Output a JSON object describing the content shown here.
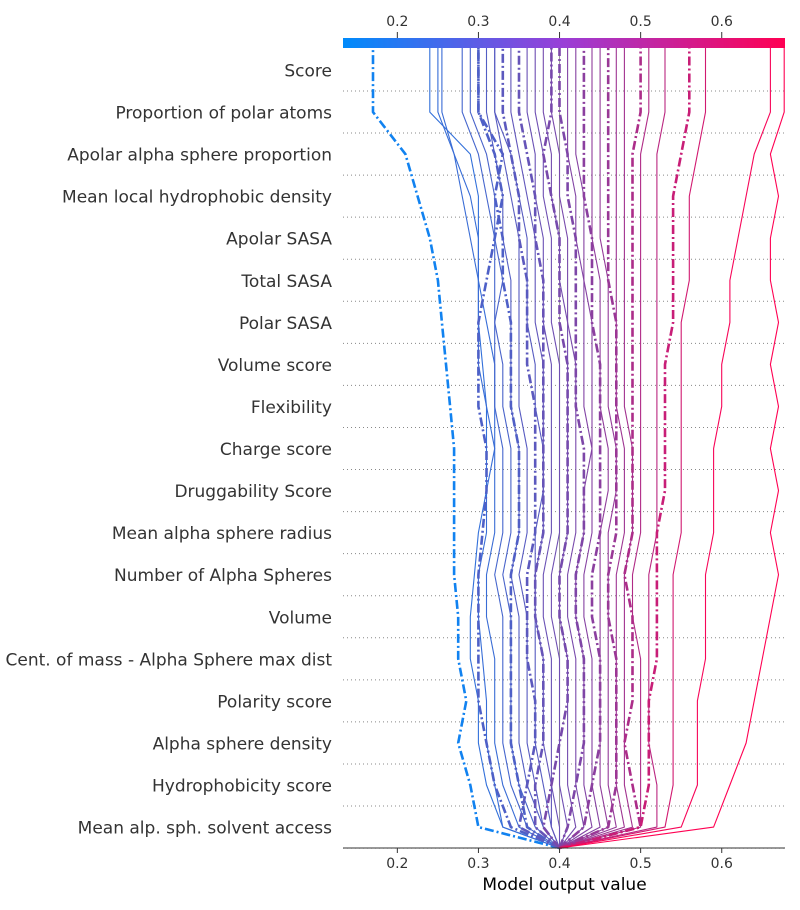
{
  "chart_data": {
    "type": "line",
    "xlabel": "Model output value",
    "xlim": [
      0.133,
      0.678
    ],
    "xticks": [
      0.2,
      0.3,
      0.4,
      0.5,
      0.6
    ],
    "tick_labels": [
      "0.2",
      "0.3",
      "0.4",
      "0.5",
      "0.6"
    ],
    "base_value": 0.4,
    "colormap": [
      "#008bfb",
      "#ff0052"
    ],
    "features": [
      "Score",
      "Proportion of polar atoms",
      "Apolar alpha sphere proportion",
      "Mean local hydrophobic density",
      "Apolar SASA",
      "Total SASA",
      "Polar SASA",
      "Volume score",
      "Flexibility",
      "Charge score",
      "Druggability Score",
      "Mean alpha sphere radius",
      "Number of Alpha Spheres",
      "Volume",
      "Cent. of mass - Alpha Sphere max dist",
      "Polarity score",
      "Alpha sphere density",
      "Hydrophobicity score",
      "Mean alp. sph. solvent access"
    ],
    "series": [
      {
        "style": "dashdot",
        "values": [
          0.4,
          0.3,
          0.29,
          0.275,
          0.285,
          0.275,
          0.275,
          0.27,
          0.27,
          0.27,
          0.27,
          0.265,
          0.26,
          0.255,
          0.25,
          0.24,
          0.225,
          0.21,
          0.17
        ]
      },
      {
        "style": "solid",
        "values": [
          0.4,
          0.33,
          0.31,
          0.3,
          0.3,
          0.29,
          0.29,
          0.295,
          0.3,
          0.31,
          0.31,
          0.31,
          0.305,
          0.3,
          0.3,
          0.3,
          0.3,
          0.29,
          0.24
        ]
      },
      {
        "style": "solid",
        "values": [
          0.4,
          0.33,
          0.32,
          0.31,
          0.31,
          0.305,
          0.3,
          0.3,
          0.31,
          0.31,
          0.32,
          0.32,
          0.32,
          0.31,
          0.3,
          0.3,
          0.29,
          0.27,
          0.25
        ]
      },
      {
        "style": "solid",
        "values": [
          0.4,
          0.35,
          0.33,
          0.32,
          0.32,
          0.32,
          0.31,
          0.31,
          0.32,
          0.32,
          0.32,
          0.31,
          0.3,
          0.3,
          0.3,
          0.29,
          0.28,
          0.27,
          0.255
        ]
      },
      {
        "style": "dashdot",
        "values": [
          0.4,
          0.34,
          0.32,
          0.31,
          0.3,
          0.3,
          0.3,
          0.3,
          0.305,
          0.31,
          0.31,
          0.3,
          0.3,
          0.3,
          0.31,
          0.32,
          0.33,
          0.32,
          0.3
        ]
      },
      {
        "style": "solid",
        "values": [
          0.4,
          0.36,
          0.34,
          0.33,
          0.33,
          0.33,
          0.33,
          0.32,
          0.33,
          0.33,
          0.33,
          0.32,
          0.32,
          0.32,
          0.32,
          0.32,
          0.31,
          0.3,
          0.28
        ]
      },
      {
        "style": "solid",
        "values": [
          0.4,
          0.37,
          0.35,
          0.34,
          0.34,
          0.34,
          0.34,
          0.33,
          0.34,
          0.34,
          0.34,
          0.33,
          0.33,
          0.32,
          0.33,
          0.32,
          0.32,
          0.31,
          0.29
        ]
      },
      {
        "style": "dashdot",
        "values": [
          0.4,
          0.36,
          0.35,
          0.34,
          0.34,
          0.34,
          0.34,
          0.34,
          0.35,
          0.35,
          0.35,
          0.34,
          0.34,
          0.34,
          0.33,
          0.33,
          0.32,
          0.33,
          0.3
        ]
      },
      {
        "style": "solid",
        "values": [
          0.4,
          0.38,
          0.36,
          0.35,
          0.35,
          0.35,
          0.35,
          0.34,
          0.35,
          0.35,
          0.35,
          0.34,
          0.34,
          0.34,
          0.34,
          0.33,
          0.33,
          0.32,
          0.31
        ]
      },
      {
        "style": "solid",
        "values": [
          0.4,
          0.38,
          0.37,
          0.36,
          0.36,
          0.36,
          0.36,
          0.35,
          0.36,
          0.36,
          0.36,
          0.35,
          0.35,
          0.35,
          0.35,
          0.35,
          0.34,
          0.33,
          0.32
        ]
      },
      {
        "style": "dashdot",
        "values": [
          0.4,
          0.35,
          0.36,
          0.37,
          0.37,
          0.36,
          0.36,
          0.36,
          0.37,
          0.37,
          0.37,
          0.37,
          0.36,
          0.36,
          0.36,
          0.35,
          0.35,
          0.34,
          0.33
        ]
      },
      {
        "style": "solid",
        "values": [
          0.4,
          0.39,
          0.38,
          0.37,
          0.37,
          0.37,
          0.37,
          0.37,
          0.37,
          0.38,
          0.38,
          0.37,
          0.37,
          0.36,
          0.36,
          0.36,
          0.35,
          0.34,
          0.32
        ]
      },
      {
        "style": "solid",
        "values": [
          0.4,
          0.39,
          0.39,
          0.38,
          0.38,
          0.38,
          0.37,
          0.37,
          0.38,
          0.38,
          0.38,
          0.38,
          0.38,
          0.37,
          0.37,
          0.37,
          0.36,
          0.35,
          0.34
        ]
      },
      {
        "style": "dashdot",
        "values": [
          0.4,
          0.37,
          0.37,
          0.38,
          0.38,
          0.38,
          0.37,
          0.37,
          0.38,
          0.38,
          0.38,
          0.38,
          0.38,
          0.38,
          0.38,
          0.37,
          0.37,
          0.36,
          0.35
        ]
      },
      {
        "style": "solid",
        "values": [
          0.4,
          0.4,
          0.39,
          0.39,
          0.39,
          0.39,
          0.38,
          0.38,
          0.39,
          0.39,
          0.39,
          0.39,
          0.39,
          0.38,
          0.38,
          0.38,
          0.37,
          0.37,
          0.36
        ]
      },
      {
        "style": "solid",
        "values": [
          0.4,
          0.41,
          0.4,
          0.4,
          0.4,
          0.4,
          0.39,
          0.39,
          0.4,
          0.4,
          0.4,
          0.4,
          0.4,
          0.39,
          0.39,
          0.39,
          0.38,
          0.38,
          0.37
        ]
      },
      {
        "style": "dashdot",
        "values": [
          0.4,
          0.38,
          0.39,
          0.4,
          0.41,
          0.41,
          0.4,
          0.4,
          0.41,
          0.41,
          0.41,
          0.41,
          0.41,
          0.4,
          0.4,
          0.4,
          0.39,
          0.38,
          0.39
        ]
      },
      {
        "style": "solid",
        "values": [
          0.4,
          0.42,
          0.41,
          0.41,
          0.41,
          0.41,
          0.4,
          0.4,
          0.41,
          0.41,
          0.41,
          0.41,
          0.41,
          0.41,
          0.4,
          0.4,
          0.39,
          0.39,
          0.38
        ]
      },
      {
        "style": "solid",
        "values": [
          0.4,
          0.43,
          0.42,
          0.42,
          0.42,
          0.42,
          0.41,
          0.41,
          0.42,
          0.42,
          0.42,
          0.42,
          0.42,
          0.41,
          0.41,
          0.41,
          0.4,
          0.4,
          0.39
        ]
      },
      {
        "style": "dashdot",
        "values": [
          0.4,
          0.41,
          0.42,
          0.43,
          0.43,
          0.43,
          0.42,
          0.42,
          0.43,
          0.43,
          0.43,
          0.42,
          0.42,
          0.42,
          0.42,
          0.42,
          0.41,
          0.41,
          0.4
        ]
      },
      {
        "style": "solid",
        "values": [
          0.4,
          0.44,
          0.43,
          0.43,
          0.43,
          0.43,
          0.42,
          0.42,
          0.43,
          0.43,
          0.44,
          0.43,
          0.43,
          0.43,
          0.43,
          0.42,
          0.42,
          0.41,
          0.41
        ]
      },
      {
        "style": "solid",
        "values": [
          0.4,
          0.45,
          0.44,
          0.44,
          0.44,
          0.44,
          0.43,
          0.43,
          0.44,
          0.44,
          0.44,
          0.44,
          0.44,
          0.44,
          0.43,
          0.43,
          0.43,
          0.42,
          0.42
        ]
      },
      {
        "style": "dashdot",
        "values": [
          0.4,
          0.43,
          0.44,
          0.45,
          0.45,
          0.45,
          0.44,
          0.44,
          0.45,
          0.45,
          0.45,
          0.45,
          0.45,
          0.44,
          0.44,
          0.44,
          0.43,
          0.43,
          0.43
        ]
      },
      {
        "style": "solid",
        "values": [
          0.4,
          0.46,
          0.45,
          0.45,
          0.45,
          0.45,
          0.45,
          0.45,
          0.45,
          0.46,
          0.46,
          0.45,
          0.45,
          0.45,
          0.45,
          0.44,
          0.44,
          0.44,
          0.44
        ]
      },
      {
        "style": "solid",
        "values": [
          0.4,
          0.47,
          0.46,
          0.46,
          0.46,
          0.46,
          0.46,
          0.46,
          0.46,
          0.47,
          0.47,
          0.46,
          0.46,
          0.46,
          0.46,
          0.45,
          0.45,
          0.45,
          0.45
        ]
      },
      {
        "style": "dashdot",
        "values": [
          0.4,
          0.46,
          0.47,
          0.47,
          0.47,
          0.47,
          0.46,
          0.46,
          0.47,
          0.47,
          0.47,
          0.47,
          0.47,
          0.47,
          0.46,
          0.46,
          0.46,
          0.46,
          0.46
        ]
      },
      {
        "style": "solid",
        "values": [
          0.4,
          0.48,
          0.47,
          0.47,
          0.47,
          0.47,
          0.47,
          0.47,
          0.48,
          0.48,
          0.48,
          0.47,
          0.47,
          0.47,
          0.47,
          0.47,
          0.47,
          0.47,
          0.47
        ]
      },
      {
        "style": "solid",
        "values": [
          0.4,
          0.49,
          0.48,
          0.48,
          0.48,
          0.48,
          0.48,
          0.48,
          0.49,
          0.49,
          0.49,
          0.48,
          0.48,
          0.48,
          0.48,
          0.48,
          0.48,
          0.48,
          0.48
        ]
      },
      {
        "style": "dashdot",
        "values": [
          0.4,
          0.5,
          0.49,
          0.48,
          0.49,
          0.49,
          0.49,
          0.48,
          0.49,
          0.49,
          0.49,
          0.49,
          0.49,
          0.49,
          0.49,
          0.49,
          0.49,
          0.49,
          0.5
        ]
      },
      {
        "style": "solid",
        "values": [
          0.4,
          0.5,
          0.5,
          0.5,
          0.5,
          0.5,
          0.49,
          0.49,
          0.5,
          0.5,
          0.5,
          0.5,
          0.5,
          0.5,
          0.5,
          0.5,
          0.5,
          0.5,
          0.51
        ]
      },
      {
        "style": "solid",
        "values": [
          0.4,
          0.52,
          0.52,
          0.51,
          0.51,
          0.51,
          0.51,
          0.51,
          0.52,
          0.52,
          0.52,
          0.52,
          0.52,
          0.52,
          0.52,
          0.52,
          0.52,
          0.52,
          0.53
        ]
      },
      {
        "style": "dashdot",
        "values": [
          0.4,
          0.5,
          0.51,
          0.51,
          0.51,
          0.52,
          0.52,
          0.52,
          0.52,
          0.53,
          0.53,
          0.53,
          0.53,
          0.54,
          0.54,
          0.54,
          0.54,
          0.55,
          0.56
        ]
      },
      {
        "style": "solid",
        "values": [
          0.4,
          0.53,
          0.54,
          0.54,
          0.54,
          0.54,
          0.54,
          0.54,
          0.55,
          0.55,
          0.55,
          0.55,
          0.55,
          0.55,
          0.56,
          0.56,
          0.56,
          0.57,
          0.58
        ]
      },
      {
        "style": "solid",
        "values": [
          0.4,
          0.55,
          0.57,
          0.57,
          0.57,
          0.58,
          0.58,
          0.58,
          0.59,
          0.59,
          0.59,
          0.6,
          0.6,
          0.61,
          0.61,
          0.62,
          0.63,
          0.64,
          0.66
        ]
      },
      {
        "style": "solid",
        "values": [
          0.4,
          0.59,
          0.61,
          0.63,
          0.64,
          0.65,
          0.66,
          0.67,
          0.66,
          0.67,
          0.66,
          0.67,
          0.66,
          0.67,
          0.66,
          0.66,
          0.67,
          0.66,
          0.677
        ]
      }
    ]
  }
}
